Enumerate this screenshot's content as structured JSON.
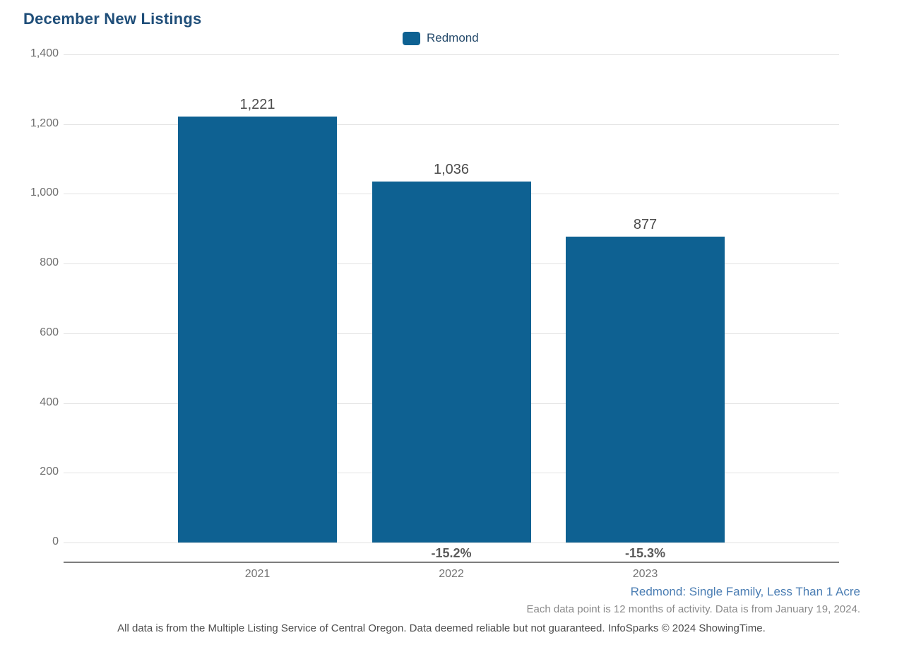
{
  "title": "December New Listings",
  "legend": {
    "items": [
      {
        "label": "Redmond"
      }
    ]
  },
  "chart_data": {
    "type": "bar",
    "title": "December New Listings",
    "categories": [
      "2021",
      "2022",
      "2023"
    ],
    "series": [
      {
        "name": "Redmond",
        "values": [
          1221,
          1036,
          877
        ]
      }
    ],
    "value_labels": [
      "1,221",
      "1,036",
      "877"
    ],
    "pct_change_labels": [
      "",
      "-15.2%",
      "-15.3%"
    ],
    "xlabel": "",
    "ylabel": "",
    "ylim": [
      0,
      1400
    ],
    "yticks": [
      {
        "value": 0,
        "label": "0"
      },
      {
        "value": 200,
        "label": "200"
      },
      {
        "value": 400,
        "label": "400"
      },
      {
        "value": 600,
        "label": "600"
      },
      {
        "value": 800,
        "label": "800"
      },
      {
        "value": 1000,
        "label": "1,000"
      },
      {
        "value": 1200,
        "label": "1,200"
      },
      {
        "value": 1400,
        "label": "1,400"
      }
    ],
    "grid": true,
    "legend_position": "top-center"
  },
  "footnotes": {
    "segment": "Redmond: Single Family, Less Than 1 Acre",
    "data_note": "Each data point is 12 months of activity. Data is from January 19, 2024.",
    "disclaimer": "All data is from the Multiple Listing Service of Central Oregon. Data deemed reliable but not guaranteed. InfoSparks © 2024 ShowingTime."
  },
  "colors": {
    "bar": "#0e6192",
    "title": "#1f4e79",
    "segment_note": "#4a7db3"
  }
}
